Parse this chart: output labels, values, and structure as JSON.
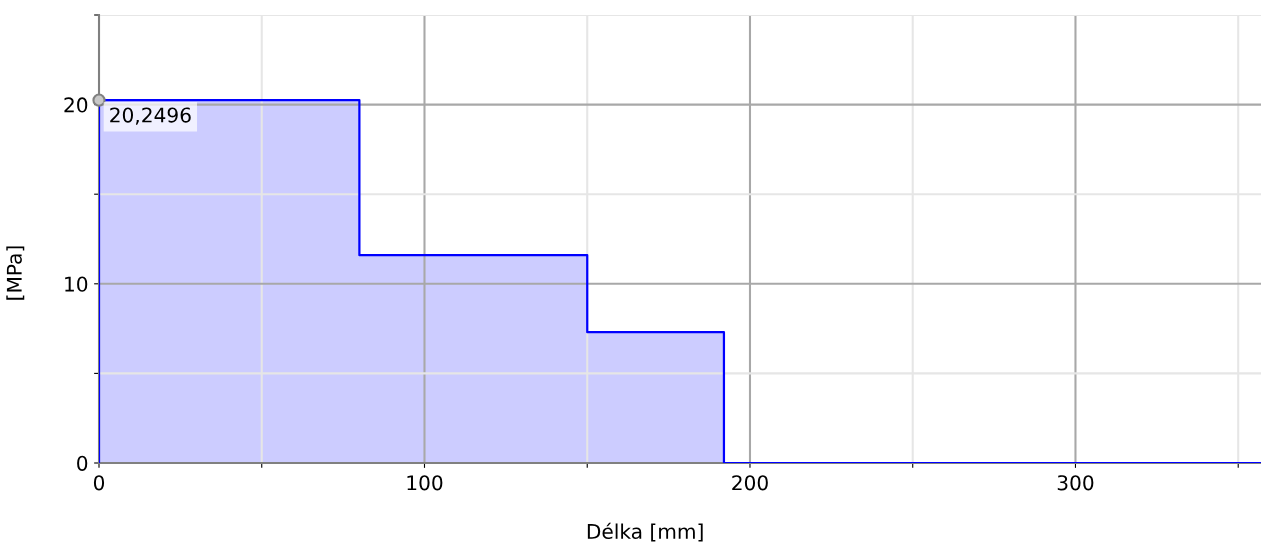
{
  "chart_data": {
    "type": "step",
    "xlabel": "Délka [mm]",
    "ylabel": "[MPa]",
    "x": [
      0,
      0,
      80,
      150,
      192,
      357
    ],
    "values": [
      0,
      20.2496,
      11.6,
      7.3,
      0,
      0
    ],
    "color": "#0000ff",
    "xlim": [
      0,
      357
    ],
    "ylim": [
      0,
      25
    ],
    "xticks": [
      0,
      {
        "value": 50,
        "label": null
      },
      100,
      {
        "value": 150,
        "label": null
      },
      200,
      {
        "value": 250,
        "label": null
      },
      300,
      {
        "value": 350,
        "label": null
      }
    ],
    "yticks": [
      0,
      {
        "value": 5,
        "label": null
      },
      10,
      {
        "value": 15,
        "label": null
      },
      20,
      {
        "value": 25,
        "label": null
      }
    ],
    "grid": true,
    "annotations": [
      {
        "text": "20,2496",
        "x": 0,
        "y": 20.2496
      }
    ]
  }
}
